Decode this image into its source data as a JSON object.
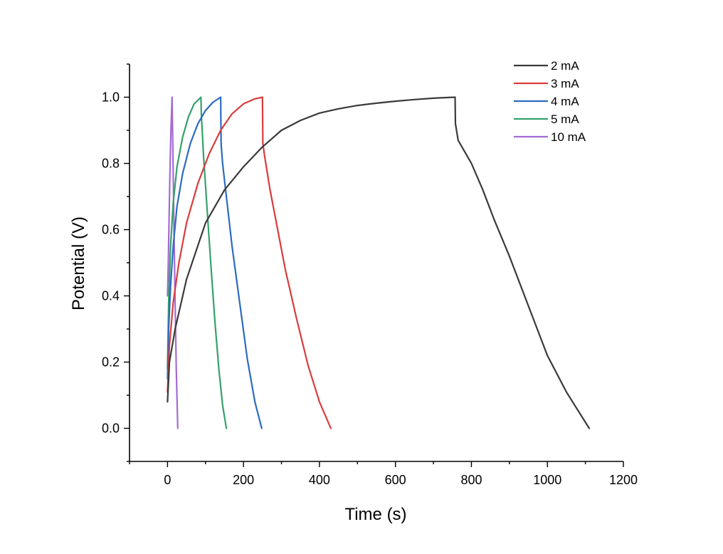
{
  "chart_data": {
    "type": "line",
    "title": "",
    "xlabel": "Time (s)",
    "ylabel": "Potential (V)",
    "xlim": [
      -100,
      1200
    ],
    "ylim": [
      -0.1,
      1.1
    ],
    "x_ticks": [
      0,
      200,
      400,
      600,
      800,
      1000,
      1200
    ],
    "y_ticks": [
      0.0,
      0.2,
      0.4,
      0.6,
      0.8,
      1.0
    ],
    "x_tick_labels": [
      "0",
      "200",
      "400",
      "600",
      "800",
      "1000",
      "1200"
    ],
    "y_tick_labels": [
      "0.0",
      "0.2",
      "0.4",
      "0.6",
      "0.8",
      "1.0"
    ],
    "grid": false,
    "legend_position": "top-right",
    "series": [
      {
        "name": "2 mA",
        "color": "#3a3a3a",
        "x": [
          0,
          5,
          20,
          50,
          100,
          150,
          200,
          250,
          300,
          350,
          400,
          450,
          500,
          550,
          600,
          650,
          700,
          757,
          758,
          765,
          780,
          800,
          830,
          860,
          900,
          950,
          1000,
          1050,
          1110
        ],
        "y": [
          0.08,
          0.2,
          0.3,
          0.45,
          0.62,
          0.72,
          0.79,
          0.85,
          0.9,
          0.93,
          0.952,
          0.965,
          0.975,
          0.982,
          0.988,
          0.993,
          0.997,
          1.0,
          0.92,
          0.87,
          0.84,
          0.8,
          0.72,
          0.63,
          0.52,
          0.37,
          0.22,
          0.11,
          0.0
        ]
      },
      {
        "name": "3 mA",
        "color": "#d93c3c",
        "x": [
          0,
          5,
          15,
          30,
          50,
          80,
          110,
          140,
          170,
          200,
          230,
          250,
          251,
          256,
          270,
          290,
          310,
          340,
          370,
          400,
          430
        ],
        "y": [
          0.11,
          0.25,
          0.38,
          0.5,
          0.62,
          0.74,
          0.83,
          0.9,
          0.95,
          0.98,
          0.995,
          1.0,
          0.86,
          0.82,
          0.72,
          0.6,
          0.48,
          0.33,
          0.19,
          0.08,
          0.0
        ]
      },
      {
        "name": "4 mA",
        "color": "#2b6bbf",
        "x": [
          0,
          3,
          8,
          15,
          25,
          40,
          60,
          80,
          100,
          120,
          140,
          141,
          145,
          155,
          170,
          190,
          210,
          230,
          248
        ],
        "y": [
          0.15,
          0.3,
          0.43,
          0.55,
          0.67,
          0.77,
          0.86,
          0.92,
          0.96,
          0.985,
          1.0,
          0.86,
          0.8,
          0.7,
          0.55,
          0.38,
          0.21,
          0.08,
          0.0
        ]
      },
      {
        "name": "5 mA",
        "color": "#35a06b",
        "x": [
          0,
          3,
          8,
          15,
          25,
          40,
          55,
          70,
          88,
          89,
          95,
          105,
          115,
          125,
          135,
          145,
          155
        ],
        "y": [
          0.18,
          0.38,
          0.55,
          0.68,
          0.79,
          0.88,
          0.94,
          0.98,
          1.0,
          0.95,
          0.82,
          0.65,
          0.48,
          0.32,
          0.18,
          0.07,
          0.0
        ]
      },
      {
        "name": "10 mA",
        "color": "#a36bd3",
        "x": [
          0,
          2,
          4,
          6,
          9,
          12,
          14,
          17,
          20,
          23,
          27
        ],
        "y": [
          0.4,
          0.5,
          0.62,
          0.75,
          0.9,
          1.0,
          0.85,
          0.6,
          0.38,
          0.18,
          0.0
        ]
      }
    ]
  }
}
